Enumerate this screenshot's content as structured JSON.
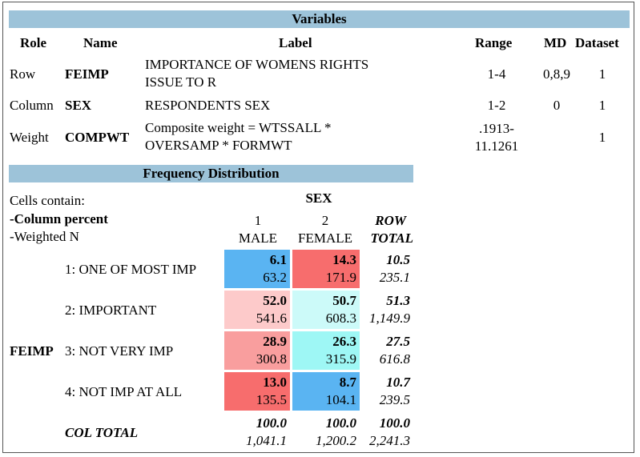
{
  "variables": {
    "title": "Variables",
    "headers": {
      "role": "Role",
      "name": "Name",
      "label": "Label",
      "range": "Range",
      "md": "MD",
      "dataset": "Dataset"
    },
    "rows": [
      {
        "role": "Row",
        "name": "FEIMP",
        "label1": "IMPORTANCE OF WOMENS RIGHTS",
        "label2": "ISSUE TO R",
        "range1": "1-4",
        "range2": "",
        "md": "0,8,9",
        "dataset": "1"
      },
      {
        "role": "Column",
        "name": "SEX",
        "label1": "RESPONDENTS SEX",
        "label2": "",
        "range1": "1-2",
        "range2": "",
        "md": "0",
        "dataset": "1"
      },
      {
        "role": "Weight",
        "name": "COMPWT",
        "label1": "Composite weight = WTSSALL *",
        "label2": "OVERSAMP * FORMWT",
        "range1": ".1913-",
        "range2": "11.1261",
        "md": "",
        "dataset": "1"
      }
    ]
  },
  "frequency": {
    "title": "Frequency Distribution",
    "cells_contain": "Cells contain:",
    "col_percent": "-Column percent",
    "weighted_n": "-Weighted N",
    "col_var": "SEX",
    "columns": [
      {
        "code": "1",
        "label": "MALE"
      },
      {
        "code": "2",
        "label": "FEMALE"
      }
    ],
    "row_total_label1": "ROW",
    "row_total_label2": "TOTAL",
    "row_var": "FEIMP",
    "rows": [
      {
        "label": "1: ONE OF MOST IMP",
        "cells": [
          {
            "pct": "6.1",
            "n": "63.2",
            "color": "#5ab4f2"
          },
          {
            "pct": "14.3",
            "n": "171.9",
            "color": "#f76d6d"
          }
        ],
        "total_pct": "10.5",
        "total_n": "235.1"
      },
      {
        "label": "2: IMPORTANT",
        "cells": [
          {
            "pct": "52.0",
            "n": "541.6",
            "color": "#fdcaca"
          },
          {
            "pct": "50.7",
            "n": "608.3",
            "color": "#ccfaf9"
          }
        ],
        "total_pct": "51.3",
        "total_n": "1,149.9"
      },
      {
        "label": "3: NOT VERY IMP",
        "cells": [
          {
            "pct": "28.9",
            "n": "300.8",
            "color": "#f99e9e"
          },
          {
            "pct": "26.3",
            "n": "315.9",
            "color": "#9ef7f5"
          }
        ],
        "total_pct": "27.5",
        "total_n": "616.8"
      },
      {
        "label": "4: NOT IMP AT ALL",
        "cells": [
          {
            "pct": "13.0",
            "n": "135.5",
            "color": "#f76d6d"
          },
          {
            "pct": "8.7",
            "n": "104.1",
            "color": "#5ab4f2"
          }
        ],
        "total_pct": "10.7",
        "total_n": "239.5"
      }
    ],
    "col_total": {
      "label": "COL TOTAL",
      "cells": [
        {
          "pct": "100.0",
          "n": "1,041.1"
        },
        {
          "pct": "100.0",
          "n": "1,200.2"
        }
      ],
      "total_pct": "100.0",
      "total_n": "2,241.3"
    }
  }
}
